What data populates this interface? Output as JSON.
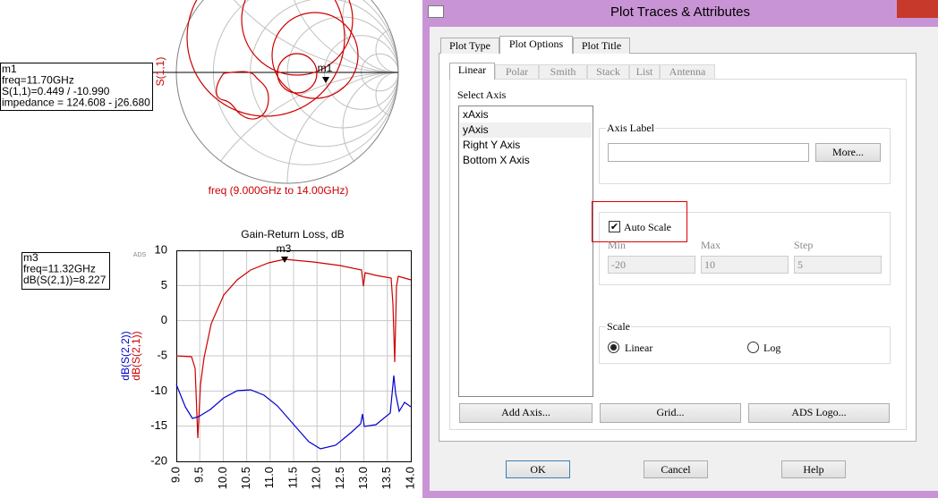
{
  "smith_plot": {
    "y_label": "S(1,1)",
    "marker_label": "m1",
    "marker_box": [
      "m1",
      "freq=11.70GHz",
      "S(1,1)=0.449 / -10.990",
      "impedance = 124.608 - j26.680"
    ],
    "x_label": "freq (9.000GHz to 14.00GHz)"
  },
  "rect_plot": {
    "title": "Gain-Return Loss, dB",
    "watermark": "ADS",
    "y_labels": [
      "dB(S(2,2))",
      "dB(S(2,1))"
    ],
    "yticks": [
      "10",
      "5",
      "0",
      "-5",
      "-10",
      "-15",
      "-20"
    ],
    "xticks": [
      "9.0",
      "9.5",
      "10.0",
      "10.5",
      "11.0",
      "11.5",
      "12.0",
      "12.5",
      "13.0",
      "13.5",
      "14.0"
    ],
    "marker_label": "m3",
    "marker_box": [
      "m3",
      "freq=11.32GHz",
      "dB(S(2,1))=8.227"
    ]
  },
  "dialog": {
    "title": "Plot Traces & Attributes",
    "tabs": [
      "Plot Type",
      "Plot Options",
      "Plot Title"
    ],
    "subtabs": [
      "Linear",
      "Polar",
      "Smith",
      "Stack",
      "List",
      "Antenna"
    ],
    "select_axis_label": "Select Axis",
    "axes": [
      "xAxis",
      "yAxis",
      "Right Y Axis",
      "Bottom X Axis"
    ],
    "axis_label_group": "Axis Label",
    "more_button": "More...",
    "auto_scale": "Auto Scale",
    "range_labels": [
      "Min",
      "Max",
      "Step"
    ],
    "range_values": [
      "-20",
      "10",
      "5"
    ],
    "scale_group": "Scale",
    "scale_options": [
      "Linear",
      "Log"
    ],
    "axis_buttons": [
      "Add Axis...",
      "Grid...",
      "ADS Logo..."
    ],
    "buttons": [
      "OK",
      "Cancel",
      "Help"
    ]
  }
}
